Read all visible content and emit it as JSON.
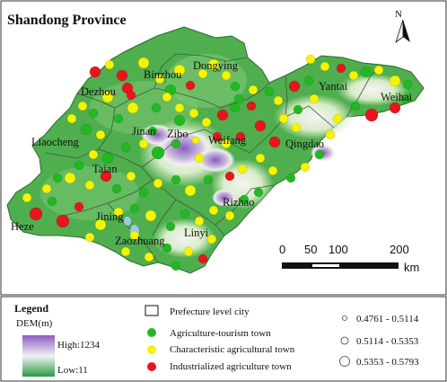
{
  "map": {
    "title": "Shandong Province",
    "north_label": "N",
    "cities": [
      "Dongying",
      "Binzhou",
      "Dezhou",
      "Yantai",
      "Weihai",
      "Jinan",
      "Zibo",
      "Weifang",
      "Qingdao",
      "Liaocheng",
      "Taian",
      "Rizhao",
      "Jining",
      "Heze",
      "Linyi",
      "Zaozhuang"
    ],
    "scale": {
      "ticks": [
        "0",
        "50",
        "100",
        "200"
      ],
      "unit": "km"
    }
  },
  "legend": {
    "title": "Legend",
    "dem_label": "DEM(m)",
    "dem_high": "High:1234",
    "dem_low": "Low:11",
    "boundary_label": "Prefecture level city",
    "town_types": [
      {
        "label": "Agriculture-tourism town",
        "color": "#22b822"
      },
      {
        "label": "Characteristic agricultural town",
        "color": "#f5f500"
      },
      {
        "label": "Industrialized agriculture town",
        "color": "#e8141e"
      }
    ],
    "size_classes": [
      "0.4761 - 0.5114",
      "0.5114 - 0.5353",
      "0.5353 - 0.5793"
    ]
  },
  "colors": {
    "dem_high": "#8a5cc0",
    "dem_mid": "#ffffff",
    "dem_low": "#2b9a44"
  }
}
